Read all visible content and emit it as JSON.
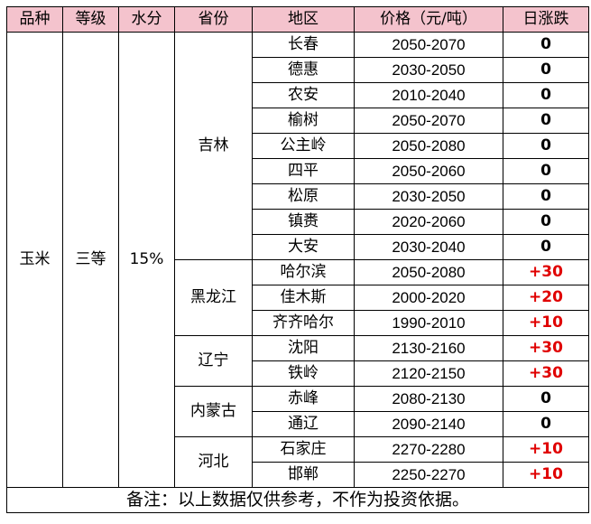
{
  "headers": [
    "品种",
    "等级",
    "水分",
    "省份",
    "地区",
    "价格（元/吨）",
    "日涨跌"
  ],
  "variety": "玉米",
  "grade": "三等",
  "moisture": "15%",
  "groups": [
    {
      "province": "吉林",
      "rows": [
        {
          "region": "长春",
          "price": "2050-2070",
          "change": "0"
        },
        {
          "region": "德惠",
          "price": "2030-2050",
          "change": "0"
        },
        {
          "region": "农安",
          "price": "2010-2040",
          "change": "0"
        },
        {
          "region": "榆树",
          "price": "2050-2070",
          "change": "0"
        },
        {
          "region": "公主岭",
          "price": "2050-2080",
          "change": "0"
        },
        {
          "region": "四平",
          "price": "2050-2060",
          "change": "0"
        },
        {
          "region": "松原",
          "price": "2030-2050",
          "change": "0"
        },
        {
          "region": "镇赉",
          "price": "2020-2060",
          "change": "0"
        },
        {
          "region": "大安",
          "price": "2030-2040",
          "change": "0"
        }
      ]
    },
    {
      "province": "黑龙江",
      "rows": [
        {
          "region": "哈尔滨",
          "price": "2050-2080",
          "change": "+30"
        },
        {
          "region": "佳木斯",
          "price": "2000-2020",
          "change": "+20"
        },
        {
          "region": "齐齐哈尔",
          "price": "1990-2010",
          "change": "+10"
        }
      ]
    },
    {
      "province": "辽宁",
      "rows": [
        {
          "region": "沈阳",
          "price": "2130-2160",
          "change": "+30"
        },
        {
          "region": "铁岭",
          "price": "2120-2150",
          "change": "+30"
        }
      ]
    },
    {
      "province": "内蒙古",
      "rows": [
        {
          "region": "赤峰",
          "price": "2080-2130",
          "change": "0"
        },
        {
          "region": "通辽",
          "price": "2090-2140",
          "change": "0"
        }
      ]
    },
    {
      "province": "河北",
      "rows": [
        {
          "region": "石家庄",
          "price": "2270-2280",
          "change": "+10"
        },
        {
          "region": "邯郸",
          "price": "2250-2270",
          "change": "+10"
        }
      ]
    }
  ],
  "note": "备注：以上数据仅供参考，不作为投资依据。",
  "colors": {
    "header_bg": "#f4c3cd",
    "up": "#e00000"
  }
}
